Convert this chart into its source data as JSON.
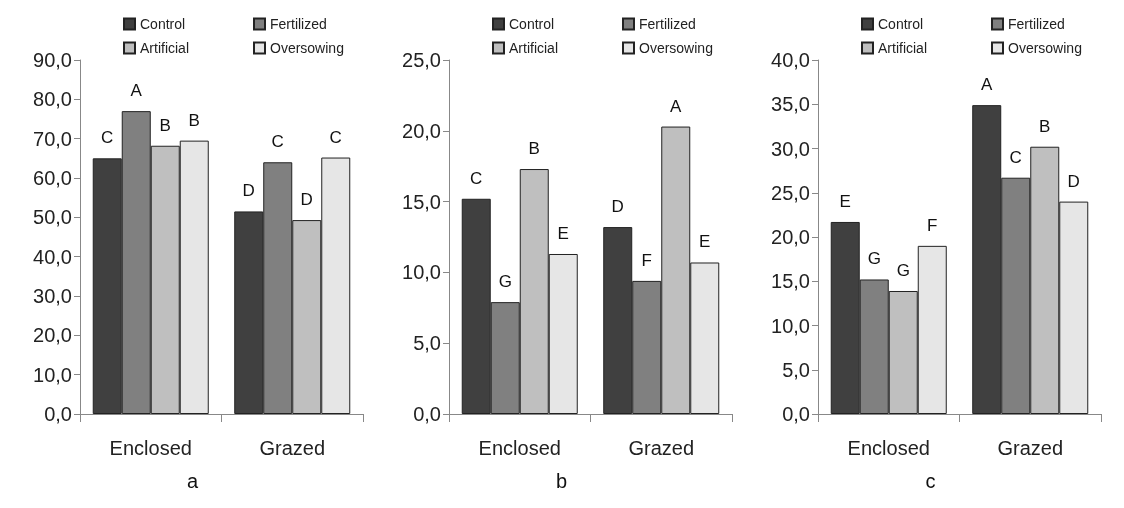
{
  "chart_data": [
    {
      "type": "bar",
      "title": "a",
      "categories": [
        "Enclosed",
        "Grazed"
      ],
      "legend": "top",
      "grid": false,
      "ylim": [
        0,
        90
      ],
      "yticks": [
        {
          "value": 0,
          "label": "0,0"
        },
        {
          "value": 10,
          "label": "10,0"
        },
        {
          "value": 20,
          "label": "20,0"
        },
        {
          "value": 30,
          "label": "30,0"
        },
        {
          "value": 40,
          "label": "40,0"
        },
        {
          "value": 50,
          "label": "50,0"
        },
        {
          "value": 60,
          "label": "60,0"
        },
        {
          "value": 70,
          "label": "70,0"
        },
        {
          "value": 80,
          "label": "80,0"
        },
        {
          "value": 90,
          "label": "90,0"
        }
      ],
      "series": [
        {
          "name": "Control",
          "color": "#404040",
          "values": [
            65.0,
            51.5
          ],
          "value_labels": [
            "C",
            "D"
          ]
        },
        {
          "name": "Fertilized",
          "color": "#808080",
          "values": [
            77.0,
            64.0
          ],
          "value_labels": [
            "A",
            "C"
          ]
        },
        {
          "name": "Artificial",
          "color": "#bfbfbf",
          "values": [
            68.2,
            49.3
          ],
          "value_labels": [
            "B",
            "D"
          ]
        },
        {
          "name": "Oversowing",
          "color": "#e6e6e6",
          "values": [
            69.5,
            65.2
          ],
          "value_labels": [
            "B",
            "C"
          ]
        }
      ]
    },
    {
      "type": "bar",
      "title": "b",
      "categories": [
        "Enclosed",
        "Grazed"
      ],
      "legend": "top",
      "grid": false,
      "ylim": [
        0,
        25
      ],
      "yticks": [
        {
          "value": 0,
          "label": "0,0"
        },
        {
          "value": 5,
          "label": "5,0"
        },
        {
          "value": 10,
          "label": "10,0"
        },
        {
          "value": 15,
          "label": "15,0"
        },
        {
          "value": 20,
          "label": "20,0"
        },
        {
          "value": 25,
          "label": "25,0"
        }
      ],
      "series": [
        {
          "name": "Control",
          "color": "#404040",
          "values": [
            15.2,
            13.2
          ],
          "value_labels": [
            "C",
            "D"
          ]
        },
        {
          "name": "Fertilized",
          "color": "#808080",
          "values": [
            7.9,
            9.4
          ],
          "value_labels": [
            "G",
            "F"
          ]
        },
        {
          "name": "Artificial",
          "color": "#bfbfbf",
          "values": [
            17.3,
            20.3
          ],
          "value_labels": [
            "B",
            "A"
          ]
        },
        {
          "name": "Oversowing",
          "color": "#e6e6e6",
          "values": [
            11.3,
            10.7
          ],
          "value_labels": [
            "E",
            "E"
          ]
        }
      ]
    },
    {
      "type": "bar",
      "title": "c",
      "categories": [
        "Enclosed",
        "Grazed"
      ],
      "legend": "top",
      "grid": false,
      "ylim": [
        0,
        40
      ],
      "yticks": [
        {
          "value": 0,
          "label": "0,0"
        },
        {
          "value": 5,
          "label": "5,0"
        },
        {
          "value": 10,
          "label": "10,0"
        },
        {
          "value": 15,
          "label": "15,0"
        },
        {
          "value": 20,
          "label": "20,0"
        },
        {
          "value": 25,
          "label": "25,0"
        },
        {
          "value": 30,
          "label": "30,0"
        },
        {
          "value": 35,
          "label": "35,0"
        },
        {
          "value": 40,
          "label": "40,0"
        }
      ],
      "series": [
        {
          "name": "Control",
          "color": "#404040",
          "values": [
            21.7,
            34.9
          ],
          "value_labels": [
            "E",
            "A"
          ]
        },
        {
          "name": "Fertilized",
          "color": "#808080",
          "values": [
            15.2,
            26.7
          ],
          "value_labels": [
            "G",
            "C"
          ]
        },
        {
          "name": "Artificial",
          "color": "#bfbfbf",
          "values": [
            13.9,
            30.2
          ],
          "value_labels": [
            "G",
            "B"
          ]
        },
        {
          "name": "Oversowing",
          "color": "#e6e6e6",
          "values": [
            19.0,
            24.0
          ],
          "value_labels": [
            "F",
            "D"
          ]
        }
      ]
    }
  ]
}
